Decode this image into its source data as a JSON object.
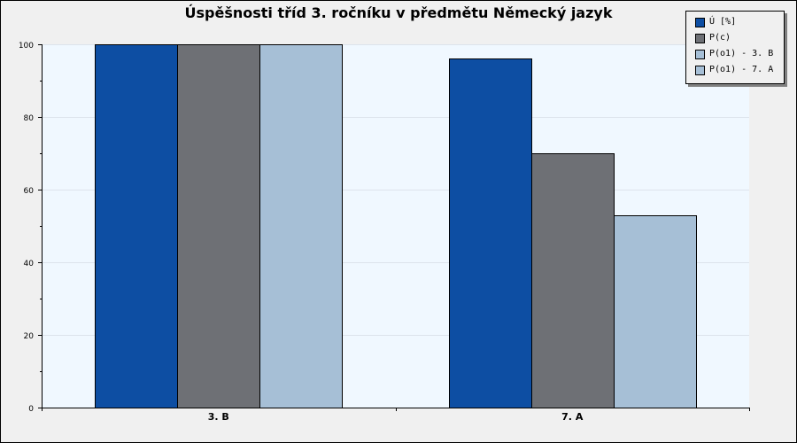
{
  "chart_data": {
    "type": "bar",
    "title": "Úspěšnosti tříd 3. ročníku v předmětu Německý jazyk",
    "categories": [
      "3. B",
      "7. A"
    ],
    "series": [
      {
        "name": "Ú [%]",
        "color": "#0d4ea3",
        "values": [
          100,
          96
        ]
      },
      {
        "name": "P(c)",
        "color": "#6e7075",
        "values": [
          100,
          70
        ]
      },
      {
        "name": "P(o1) - 3. B",
        "color": "#a6bfd6",
        "values": [
          100,
          null
        ]
      },
      {
        "name": "P(o1) - 7. A",
        "color": "#a6bfd6",
        "values": [
          null,
          53
        ]
      }
    ],
    "ylim": [
      0,
      100
    ],
    "yticks": [
      0,
      20,
      40,
      60,
      80,
      100
    ],
    "grid": true,
    "legend": "top-right",
    "plot_background": "#f0f8ff"
  }
}
